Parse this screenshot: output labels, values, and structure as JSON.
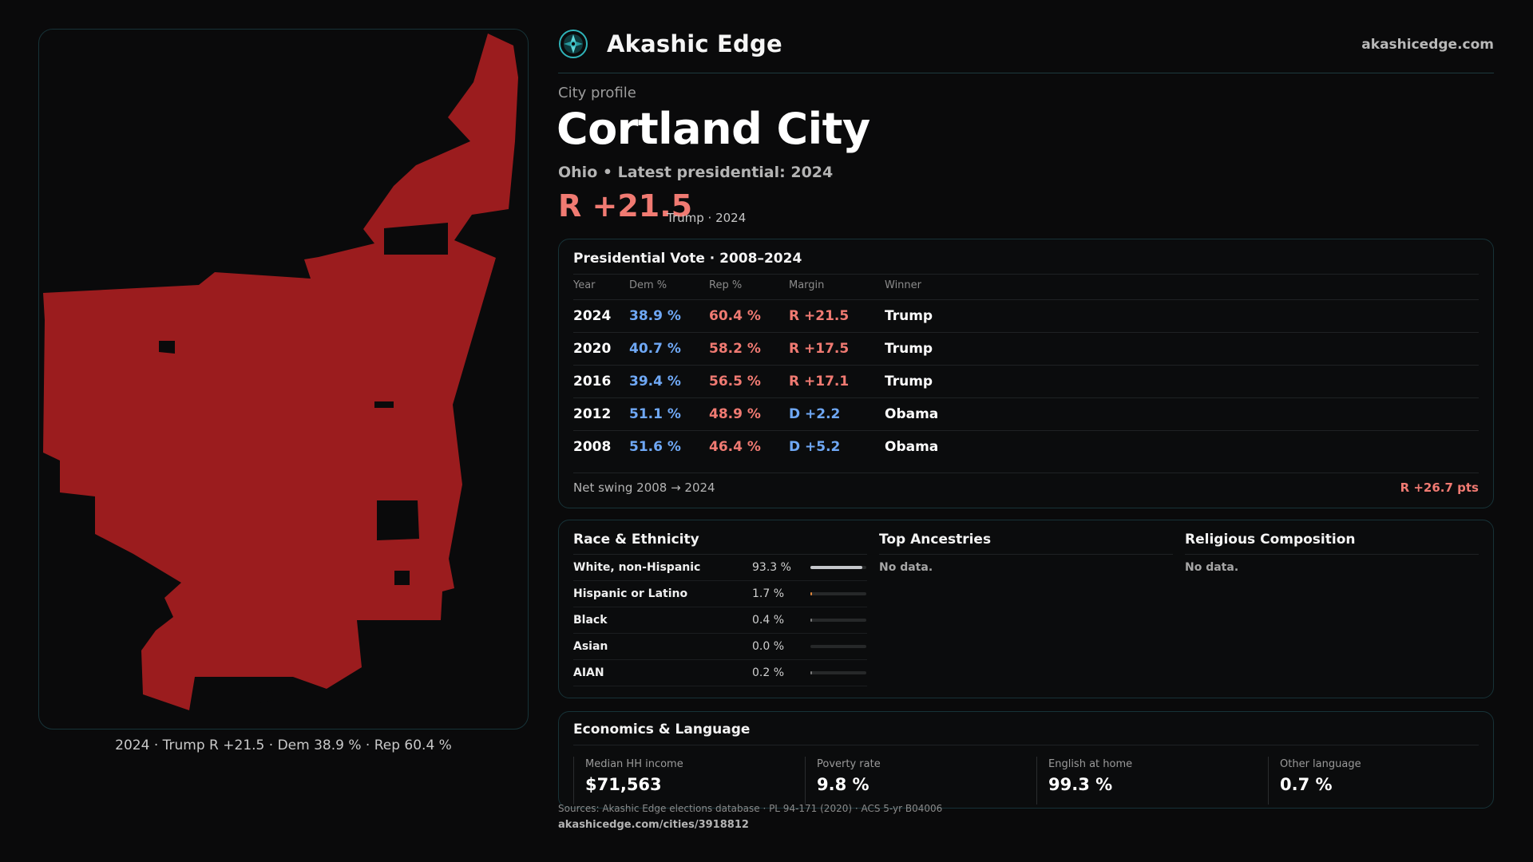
{
  "header": {
    "brand": "Akashic Edge",
    "site": "akashicedge.com",
    "logo_icon": "compass-logo-icon"
  },
  "profile": {
    "kicker": "City profile",
    "title": "Cortland City",
    "subtitle": "Ohio • Latest presidential: 2024",
    "headline_margin": "R +21.5",
    "headline_note": "Trump · 2024"
  },
  "map": {
    "caption": "2024 · Trump R +21.5 · Dem 38.9 % · Rep 60.4 %",
    "fill_color": "#9b1c1e"
  },
  "vote": {
    "title": "Presidential Vote · 2008–2024",
    "columns": [
      "Year",
      "Dem %",
      "Rep %",
      "Margin",
      "Winner"
    ],
    "rows": [
      {
        "year": "2024",
        "dem": "38.9 %",
        "rep": "60.4 %",
        "margin": "R +21.5",
        "winner": "Trump"
      },
      {
        "year": "2020",
        "dem": "40.7 %",
        "rep": "58.2 %",
        "margin": "R +17.5",
        "winner": "Trump"
      },
      {
        "year": "2016",
        "dem": "39.4 %",
        "rep": "56.5 %",
        "margin": "R +17.1",
        "winner": "Trump"
      },
      {
        "year": "2012",
        "dem": "51.1 %",
        "rep": "48.9 %",
        "margin": "D +2.2",
        "winner": "Obama"
      },
      {
        "year": "2008",
        "dem": "51.6 %",
        "rep": "46.4 %",
        "margin": "D +5.2",
        "winner": "Obama"
      }
    ],
    "swing_label": "Net swing 2008 → 2024",
    "swing_value": "R +26.7 pts"
  },
  "demographics": {
    "race_title": "Race & Ethnicity",
    "race": [
      {
        "label": "White, non-Hispanic",
        "value": "93.3 %",
        "share": 0.933,
        "color": "#c5c7cb"
      },
      {
        "label": "Hispanic or Latino",
        "value": "1.7 %",
        "share": 0.017,
        "color": "#e0863a"
      },
      {
        "label": "Black",
        "value": "0.4 %",
        "share": 0.004,
        "color": "#7a7a7a"
      },
      {
        "label": "Asian",
        "value": "0.0 %",
        "share": 0.0,
        "color": "#7a7a7a"
      },
      {
        "label": "AIAN",
        "value": "0.2 %",
        "share": 0.002,
        "color": "#7a7a7a"
      }
    ],
    "ancestries_title": "Top Ancestries",
    "ancestries_nodata": "No data.",
    "religion_title": "Religious Composition",
    "religion_nodata": "No data."
  },
  "economics": {
    "title": "Economics & Language",
    "stats": [
      {
        "label": "Median HH income",
        "value": "$71,563"
      },
      {
        "label": "Poverty rate",
        "value": "9.8 %"
      },
      {
        "label": "English at home",
        "value": "99.3 %"
      },
      {
        "label": "Other language",
        "value": "0.7 %"
      }
    ]
  },
  "footer": {
    "sources": "Sources: Akashic Edge elections database · PL 94-171 (2020) · ACS 5-yr B04006",
    "permalink": "akashicedge.com/cities/3918812"
  },
  "colors": {
    "rep": "#f07a72",
    "dem": "#6fa8f5",
    "accent": "#1d3b3f"
  }
}
